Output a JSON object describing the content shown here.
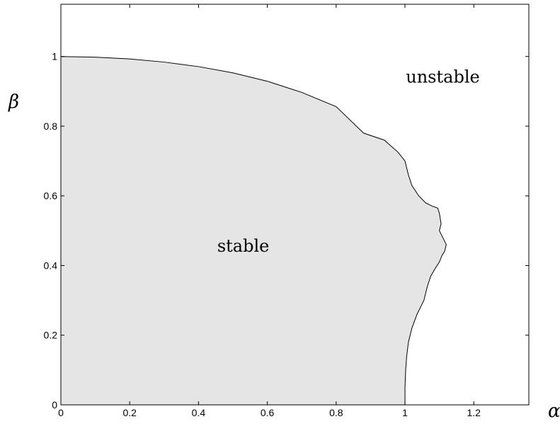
{
  "chart_data": {
    "type": "area",
    "xlabel": "α",
    "ylabel": "β",
    "xlim": [
      0,
      1.36
    ],
    "ylim": [
      0,
      1.15
    ],
    "xticks": [
      0,
      0.2,
      0.4,
      0.6,
      0.8,
      1,
      1.2
    ],
    "xtick_labels": [
      "0",
      "0.2",
      "0.4",
      "0.6",
      "0.8",
      "1",
      "1.2"
    ],
    "yticks": [
      0,
      0.2,
      0.4,
      0.6,
      0.8,
      1
    ],
    "ytick_labels": [
      "0",
      "0.2",
      "0.4",
      "0.6",
      "0.8",
      "1"
    ],
    "grid": false,
    "fill_color": "#e5e5e5",
    "line_color": "#000000",
    "boundary": {
      "x": [
        0,
        0.1,
        0.2,
        0.3,
        0.4,
        0.5,
        0.6,
        0.7,
        0.8,
        0.88,
        0.94,
        0.98,
        1.0,
        1.01,
        1.02,
        1.04,
        1.06,
        1.08,
        1.095,
        1.1,
        1.105,
        1.1,
        1.11,
        1.12,
        1.115,
        1.108,
        1.1,
        1.09,
        1.075,
        1.065,
        1.06,
        1.055,
        1.045,
        1.035,
        1.02,
        1.01,
        1.005,
        1.002,
        1.0,
        1.0
      ],
      "y": [
        1.0,
        0.998,
        0.993,
        0.984,
        0.971,
        0.953,
        0.929,
        0.897,
        0.856,
        0.78,
        0.76,
        0.725,
        0.7,
        0.66,
        0.63,
        0.6,
        0.58,
        0.57,
        0.565,
        0.55,
        0.52,
        0.5,
        0.48,
        0.46,
        0.44,
        0.43,
        0.41,
        0.395,
        0.37,
        0.34,
        0.32,
        0.3,
        0.28,
        0.26,
        0.22,
        0.18,
        0.14,
        0.1,
        0.05,
        0.0
      ]
    },
    "annotations": [
      {
        "text": "stable",
        "x": 0.53,
        "y": 0.44
      },
      {
        "text": "unstable",
        "x": 1.11,
        "y": 0.925
      }
    ]
  }
}
